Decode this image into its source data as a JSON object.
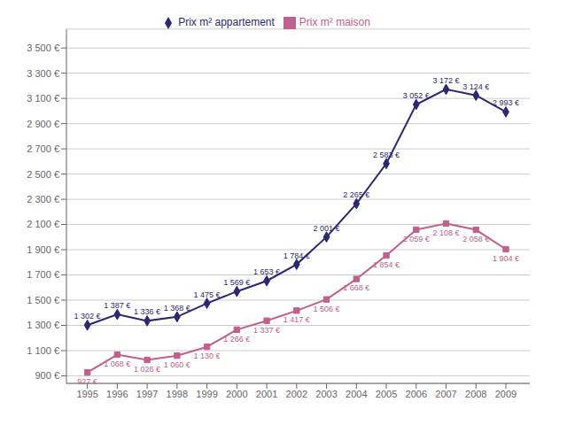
{
  "chart_data": {
    "type": "line",
    "x": [
      1995,
      1996,
      1997,
      1998,
      1999,
      2000,
      2001,
      2002,
      2003,
      2004,
      2005,
      2006,
      2007,
      2008,
      2009
    ],
    "xlim": [
      1994.3,
      2009.8
    ],
    "xticks": [
      1995,
      1996,
      1997,
      1998,
      1999,
      2000,
      2001,
      2002,
      2003,
      2004,
      2005,
      2006,
      2007,
      2008,
      2009
    ],
    "ylim": [
      840,
      3650
    ],
    "yticks": [
      {
        "value": 900,
        "label": "900 €"
      },
      {
        "value": 1100,
        "label": "1 100 €"
      },
      {
        "value": 1300,
        "label": "1 300 €"
      },
      {
        "value": 1500,
        "label": "1 500 €"
      },
      {
        "value": 1700,
        "label": "1 700 €"
      },
      {
        "value": 1900,
        "label": "1 900 €"
      },
      {
        "value": 2100,
        "label": "2 100 €"
      },
      {
        "value": 2300,
        "label": "2 300 €"
      },
      {
        "value": 2500,
        "label": "2 500 €"
      },
      {
        "value": 2700,
        "label": "2 700 €"
      },
      {
        "value": 2900,
        "label": "2 900 €"
      },
      {
        "value": 3100,
        "label": "3 100 €"
      },
      {
        "value": 3300,
        "label": "3 300 €"
      },
      {
        "value": 3500,
        "label": "3 500 €"
      }
    ],
    "grid": "y",
    "legend": "top",
    "data_labels": true,
    "series": [
      {
        "name": "Prix m² appartement",
        "color": "#2B2873",
        "marker": "diamond",
        "line_style": "solid",
        "values": [
          1302,
          1387,
          1336,
          1368,
          1475,
          1569,
          1653,
          1784,
          2001,
          2265,
          2583,
          3052,
          3172,
          3124,
          2993
        ],
        "value_labels": [
          "1 302 €",
          "1 387 €",
          "1 336 €",
          "1 368 €",
          "1 475 €",
          "1 569 €",
          "1 653 €",
          "1 784 €",
          "2 001 €",
          "2 265 €",
          "2 583 €",
          "3 052 €",
          "3 172 €",
          "3 124 €",
          "2 993 €"
        ]
      },
      {
        "name": "Prix m² maison",
        "color": "#C0608F",
        "marker": "square",
        "line_style": "solid",
        "values": [
          927,
          1068,
          1026,
          1060,
          1130,
          1266,
          1337,
          1417,
          1506,
          1668,
          1854,
          2059,
          2108,
          2058,
          1904
        ],
        "value_labels": [
          "927 €",
          "1 068 €",
          "1 026 €",
          "1 060 €",
          "1 130 €",
          "1 266 €",
          "1 337 €",
          "1 417 €",
          "1 506 €",
          "1 668 €",
          "1 854 €",
          "2 059 €",
          "2 108 €",
          "2 058 €",
          "1 904 €"
        ]
      }
    ]
  }
}
